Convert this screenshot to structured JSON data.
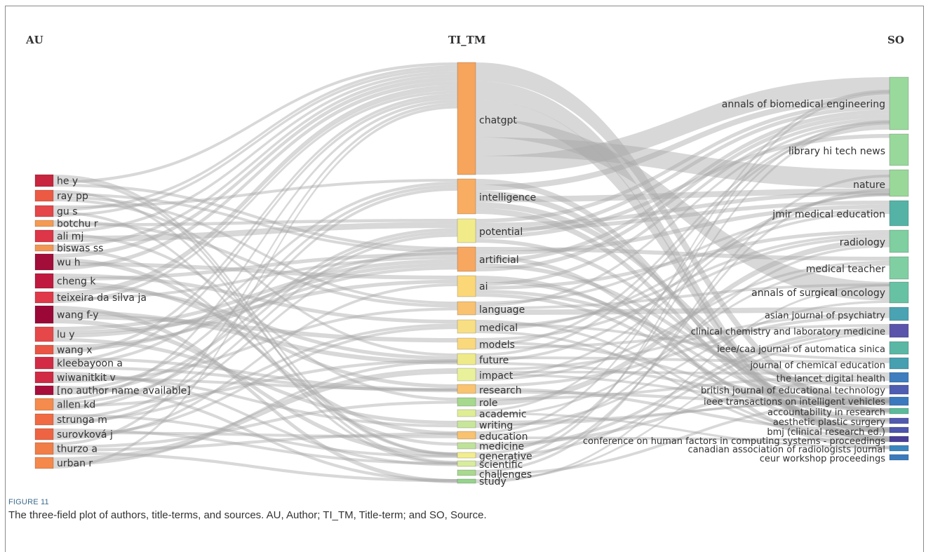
{
  "figure": {
    "number": "FIGURE 11",
    "caption": "The three-field plot of authors, title-terms, and sources. AU, Author; TI_TM, Title-term; and SO, Source."
  },
  "columns": {
    "left": "AU",
    "middle": "TI_TM",
    "right": "SO"
  },
  "colors": {
    "link": "#a9a9a9",
    "label": "#333333",
    "caption_num": "#3d6a8c"
  },
  "authors": [
    {
      "name": "he y",
      "color": "#c8253f"
    },
    {
      "name": "ray pp",
      "color": "#ec5a44"
    },
    {
      "name": "gu s",
      "color": "#e4464a"
    },
    {
      "name": "botchu r",
      "color": "#f59a52"
    },
    {
      "name": "ali mj",
      "color": "#dc3648"
    },
    {
      "name": "biswas ss",
      "color": "#f39654"
    },
    {
      "name": "wu h",
      "color": "#a30d3a"
    },
    {
      "name": "cheng k",
      "color": "#c0193f"
    },
    {
      "name": "teixeira da silva ja",
      "color": "#e0394a"
    },
    {
      "name": "wang f-y",
      "color": "#9b0837"
    },
    {
      "name": "lu y",
      "color": "#e6484a"
    },
    {
      "name": "wang x",
      "color": "#ea5544"
    },
    {
      "name": "kleebayoon a",
      "color": "#d32b45"
    },
    {
      "name": "wiwanitkit v",
      "color": "#d02a45"
    },
    {
      "name": "[no author name available]",
      "color": "#a80e3c"
    },
    {
      "name": "allen kd",
      "color": "#f58b4c"
    },
    {
      "name": "strunga m",
      "color": "#f06a43"
    },
    {
      "name": "surovková j",
      "color": "#ee6443"
    },
    {
      "name": "thurzo a",
      "color": "#f17d47"
    },
    {
      "name": "urban r",
      "color": "#f5884b"
    }
  ],
  "terms": [
    {
      "name": "chatgpt",
      "color": "#f7a45c"
    },
    {
      "name": "intelligence",
      "color": "#f8ad62"
    },
    {
      "name": "potential",
      "color": "#f1eb8a"
    },
    {
      "name": "artificial",
      "color": "#f7a75f"
    },
    {
      "name": "ai",
      "color": "#fbd778"
    },
    {
      "name": "language",
      "color": "#f9c270"
    },
    {
      "name": "medical",
      "color": "#f9df84"
    },
    {
      "name": "models",
      "color": "#fad97d"
    },
    {
      "name": "future",
      "color": "#eeea89"
    },
    {
      "name": "impact",
      "color": "#e9f29a"
    },
    {
      "name": "research",
      "color": "#f9c36f"
    },
    {
      "name": "role",
      "color": "#a6d88e"
    },
    {
      "name": "academic",
      "color": "#dfee95"
    },
    {
      "name": "writing",
      "color": "#c8e69a"
    },
    {
      "name": "education",
      "color": "#f8c270"
    },
    {
      "name": "medicine",
      "color": "#bfe29a"
    },
    {
      "name": "generative",
      "color": "#f2ed8f"
    },
    {
      "name": "scientific",
      "color": "#d7ec9c"
    },
    {
      "name": "challenges",
      "color": "#a8d98f"
    },
    {
      "name": "study",
      "color": "#94d48b"
    }
  ],
  "sources": [
    {
      "name": "annals of biomedical engineering",
      "color": "#9ad99c"
    },
    {
      "name": "library hi tech news",
      "color": "#99d89b"
    },
    {
      "name": "nature",
      "color": "#9ad89a"
    },
    {
      "name": "jmir medical education",
      "color": "#55b3a6"
    },
    {
      "name": "radiology",
      "color": "#7fcfa0"
    },
    {
      "name": "medical teacher",
      "color": "#80cfa3"
    },
    {
      "name": "annals of surgical oncology",
      "color": "#67c2a3"
    },
    {
      "name": "asian journal of psychiatry",
      "color": "#4aa3b2"
    },
    {
      "name": "clinical chemistry and laboratory medicine",
      "color": "#5a55ab"
    },
    {
      "name": "ieee/caa journal of automatica sinica",
      "color": "#5ab7a4"
    },
    {
      "name": "journal of chemical education",
      "color": "#46a0b0"
    },
    {
      "name": "the lancet digital health",
      "color": "#3e7ebf"
    },
    {
      "name": "british journal of educational technology",
      "color": "#4f5eb1"
    },
    {
      "name": "ieee transactions on intelligent vehicles",
      "color": "#3a79be"
    },
    {
      "name": "accountability in research",
      "color": "#5bbb9a"
    },
    {
      "name": "aesthetic plastic surgery",
      "color": "#525ab0"
    },
    {
      "name": "bmj (clinical research ed.)",
      "color": "#4d55ac"
    },
    {
      "name": "conference on human factors in computing systems - proceedings",
      "color": "#4a3f98"
    },
    {
      "name": "canadian association of radiologists journal",
      "color": "#3c86bf"
    },
    {
      "name": "ceur workshop proceedings",
      "color": "#3b7bbd"
    }
  ]
}
